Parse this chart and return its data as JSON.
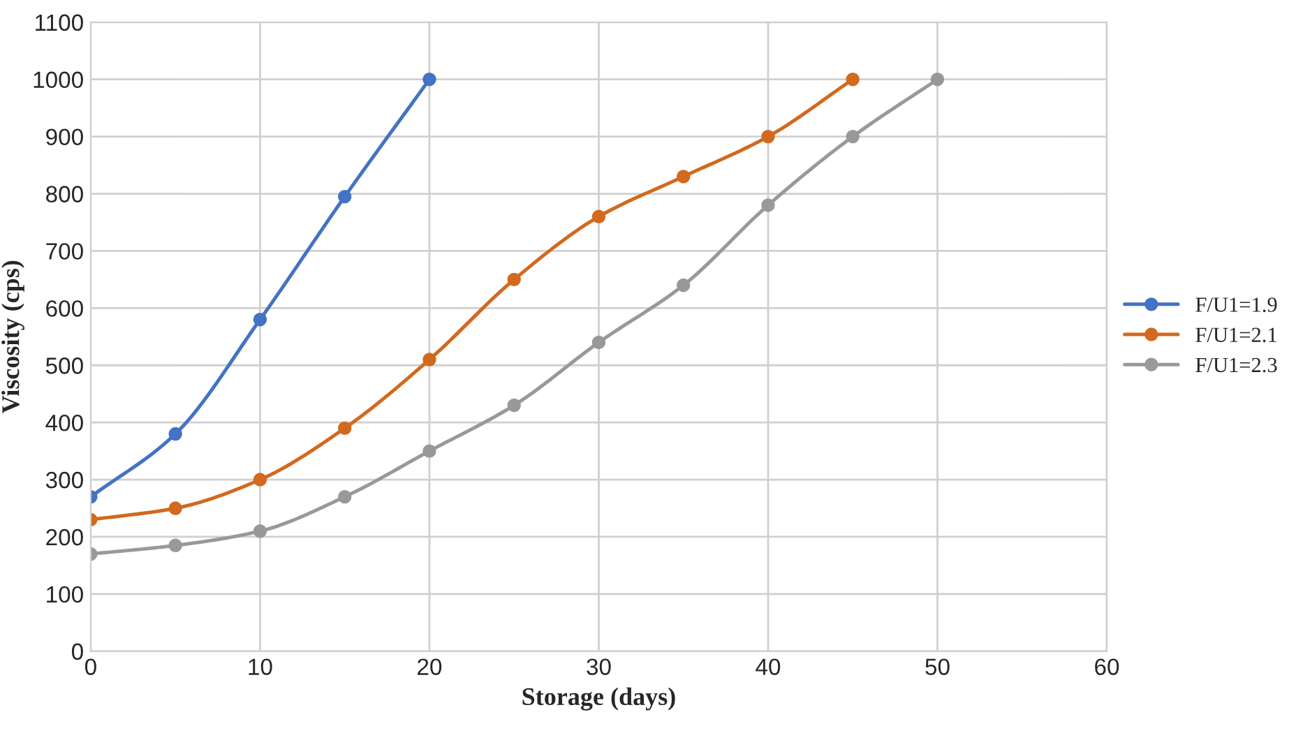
{
  "chart_data": {
    "type": "line",
    "xlabel": "Storage (days)",
    "ylabel": "Viscosity (cps)",
    "xlim": [
      0,
      60
    ],
    "xticks": [
      0,
      10,
      20,
      30,
      40,
      50,
      60
    ],
    "ylim": [
      0,
      1100
    ],
    "yticks": [
      0,
      100,
      200,
      300,
      400,
      500,
      600,
      700,
      800,
      900,
      1000,
      1100
    ],
    "grid": true,
    "legend": "right",
    "marker": "circle",
    "line_style": "solid",
    "series": [
      {
        "name": "F/U1=1.9",
        "color": "#4472c4",
        "x": [
          0,
          5,
          10,
          15,
          20
        ],
        "values": [
          270,
          380,
          580,
          795,
          1000
        ]
      },
      {
        "name": "F/U1=2.1",
        "color": "#d2691e",
        "x": [
          0,
          5,
          10,
          15,
          20,
          25,
          30,
          35,
          40,
          45
        ],
        "values": [
          230,
          250,
          300,
          390,
          510,
          650,
          760,
          830,
          900,
          1000
        ]
      },
      {
        "name": "F/U1=2.3",
        "color": "#999999",
        "x": [
          0,
          5,
          10,
          15,
          20,
          25,
          30,
          35,
          40,
          45,
          50
        ],
        "values": [
          170,
          185,
          210,
          270,
          350,
          430,
          540,
          640,
          780,
          900,
          1000
        ]
      }
    ]
  }
}
